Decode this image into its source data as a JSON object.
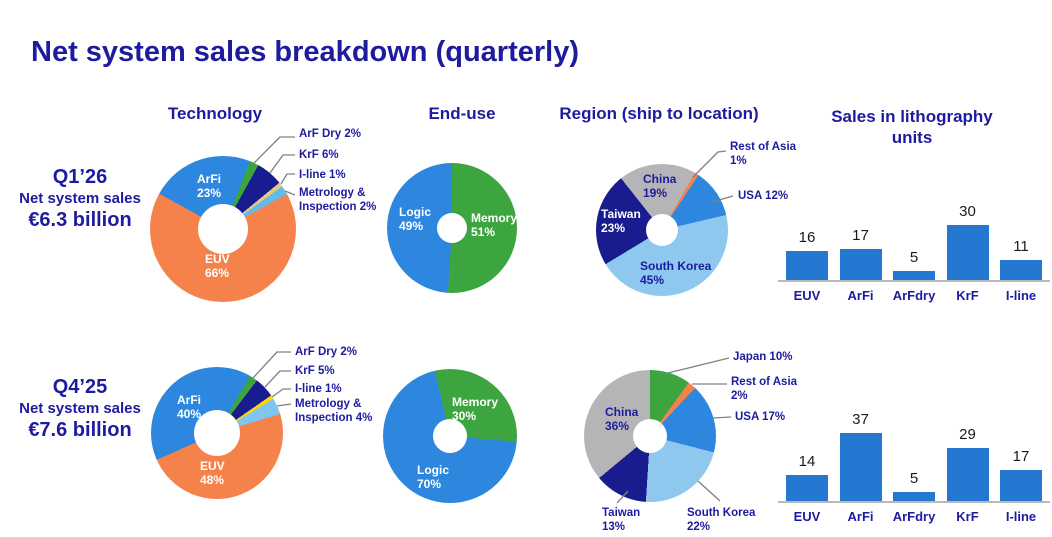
{
  "title": "Net system sales breakdown (quarterly)",
  "column_headers": {
    "technology": "Technology",
    "end_use": "End-use",
    "region": "Region (ship to location)",
    "units": "Sales in lithography units"
  },
  "quarters": [
    {
      "name": "Q1’26",
      "subtitle": "Net system sales",
      "amount": "€6.3 billion"
    },
    {
      "name": "Q4’25",
      "subtitle": "Net system sales",
      "amount": "€7.6 billion"
    }
  ],
  "colors": {
    "heading_navy": "#1d1b9e",
    "bar_blue": "#2478d2",
    "slice_blue": "#2e87de",
    "slice_orange": "#f5824a",
    "slice_green": "#3da540",
    "slice_dark_navy": "#181c8f",
    "slice_tan": "#ecc87e",
    "slice_yellow": "#ffd402",
    "slice_sky": "#5fbde8",
    "slice_pale_blue": "#7fc5ef",
    "slice_light_blue": "#8fc8ee",
    "slice_gray": "#b5b5b7",
    "leader_line": "#808080",
    "axis_line": "#b9b9b9"
  },
  "chart_data": [
    {
      "id": "q1-technology",
      "type": "pie",
      "quarter": "Q1’26",
      "title": "Technology",
      "slices": [
        {
          "name": "ArFi",
          "pct": 23,
          "pct_text": "23%",
          "color": "#2e87de"
        },
        {
          "name": "ArF Dry",
          "pct": 2,
          "callout": "ArF Dry 2%",
          "color": "#3da540"
        },
        {
          "name": "KrF",
          "pct": 6,
          "callout": "KrF 6%",
          "color": "#181c8f"
        },
        {
          "name": "I-line",
          "pct": 1,
          "callout": "I-line 1%",
          "color": "#ecc87e"
        },
        {
          "name": "Metrology & Inspection",
          "pct": 2,
          "callout": "Metrology & Inspection 2%",
          "color": "#5fbde8"
        },
        {
          "name": "EUV",
          "pct": 66,
          "pct_text": "66%",
          "color": "#f5824a"
        }
      ]
    },
    {
      "id": "q1-end-use",
      "type": "pie",
      "quarter": "Q1’26",
      "title": "End-use",
      "slices": [
        {
          "name": "Memory",
          "pct": 51,
          "pct_text": "51%",
          "color": "#3da540"
        },
        {
          "name": "Logic",
          "pct": 49,
          "pct_text": "49%",
          "color": "#2e87de"
        }
      ]
    },
    {
      "id": "q1-region",
      "type": "pie",
      "quarter": "Q1’26",
      "title": "Region (ship to location)",
      "slices": [
        {
          "name": "Rest of Asia",
          "pct": 1,
          "callout": "Rest of Asia 1%",
          "color": "#f5824a"
        },
        {
          "name": "USA",
          "pct": 12,
          "callout": "USA 12%",
          "color": "#2e87de"
        },
        {
          "name": "South Korea",
          "pct": 45,
          "pct_text": "45%",
          "color": "#8fc8ee"
        },
        {
          "name": "Taiwan",
          "pct": 23,
          "pct_text": "23%",
          "color": "#181c8f"
        },
        {
          "name": "China",
          "pct": 19,
          "pct_text": "19%",
          "color": "#b5b5b7"
        }
      ]
    },
    {
      "id": "q1-units",
      "type": "bar",
      "quarter": "Q1’26",
      "title": "Sales in lithography units",
      "categories": [
        "EUV",
        "ArFi",
        "ArFdry",
        "KrF",
        "I-line"
      ],
      "values": [
        16,
        17,
        5,
        30,
        11
      ]
    },
    {
      "id": "q4-technology",
      "type": "pie",
      "quarter": "Q4’25",
      "title": "Technology",
      "slices": [
        {
          "name": "ArFi",
          "pct": 40,
          "pct_text": "40%",
          "color": "#2e87de"
        },
        {
          "name": "ArF Dry",
          "pct": 2,
          "callout": "ArF Dry 2%",
          "color": "#3da540"
        },
        {
          "name": "KrF",
          "pct": 5,
          "callout": "KrF 5%",
          "color": "#181c8f"
        },
        {
          "name": "I-line",
          "pct": 1,
          "callout": "I-line 1%",
          "color": "#ffd402"
        },
        {
          "name": "Metrology & Inspection",
          "pct": 4,
          "callout": "Metrology & Inspection 4%",
          "color": "#7fc5ef"
        },
        {
          "name": "EUV",
          "pct": 48,
          "pct_text": "48%",
          "color": "#f5824a"
        }
      ]
    },
    {
      "id": "q4-end-use",
      "type": "pie",
      "quarter": "Q4’25",
      "title": "End-use",
      "slices": [
        {
          "name": "Memory",
          "pct": 30,
          "pct_text": "30%",
          "color": "#3da540"
        },
        {
          "name": "Logic",
          "pct": 70,
          "pct_text": "70%",
          "color": "#2e87de"
        }
      ]
    },
    {
      "id": "q4-region",
      "type": "pie",
      "quarter": "Q4’25",
      "title": "Region (ship to location)",
      "slices": [
        {
          "name": "Japan",
          "pct": 10,
          "callout": "Japan 10%",
          "color": "#3da540"
        },
        {
          "name": "Rest of Asia",
          "pct": 2,
          "callout": "Rest of Asia 2%",
          "color": "#f5824a"
        },
        {
          "name": "USA",
          "pct": 17,
          "callout": "USA 17%",
          "color": "#2e87de"
        },
        {
          "name": "South Korea",
          "pct": 22,
          "callout": "South Korea 22%",
          "color": "#8fc8ee"
        },
        {
          "name": "Taiwan",
          "pct": 13,
          "callout": "Taiwan 13%",
          "color": "#181c8f"
        },
        {
          "name": "China",
          "pct": 36,
          "pct_text": "36%",
          "color": "#b5b5b7"
        }
      ]
    },
    {
      "id": "q4-units",
      "type": "bar",
      "quarter": "Q4’25",
      "title": "Sales in lithography units",
      "categories": [
        "EUV",
        "ArFi",
        "ArFdry",
        "KrF",
        "I-line"
      ],
      "values": [
        14,
        37,
        5,
        29,
        17
      ]
    }
  ]
}
